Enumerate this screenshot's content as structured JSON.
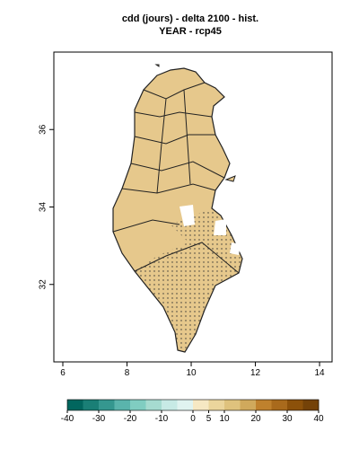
{
  "map": {
    "title": "cdd (jours) - delta 2100 - hist.",
    "subtitle": "YEAR - rcp45",
    "xlim": [
      5.72,
      14.39
    ],
    "ylim": [
      30,
      38
    ],
    "xticks": [
      6,
      8,
      10,
      12,
      14
    ],
    "yticks": [
      32,
      34,
      36
    ],
    "colorbar": {
      "lim": [
        -40,
        40
      ],
      "ticks": [
        -40,
        -30,
        -20,
        -10,
        0,
        5,
        10,
        20,
        30,
        40
      ],
      "colors": [
        "#01665e",
        "#1a7f76",
        "#35978f",
        "#5ab4ac",
        "#80cdc1",
        "#a6dbd0",
        "#c7eae5",
        "#e0f3f0",
        "#f6e8c3",
        "#ebd59c",
        "#dfc27d",
        "#d0a95c",
        "#bf812d",
        "#a96a1c",
        "#8c510a",
        "#744208"
      ]
    }
  }
}
